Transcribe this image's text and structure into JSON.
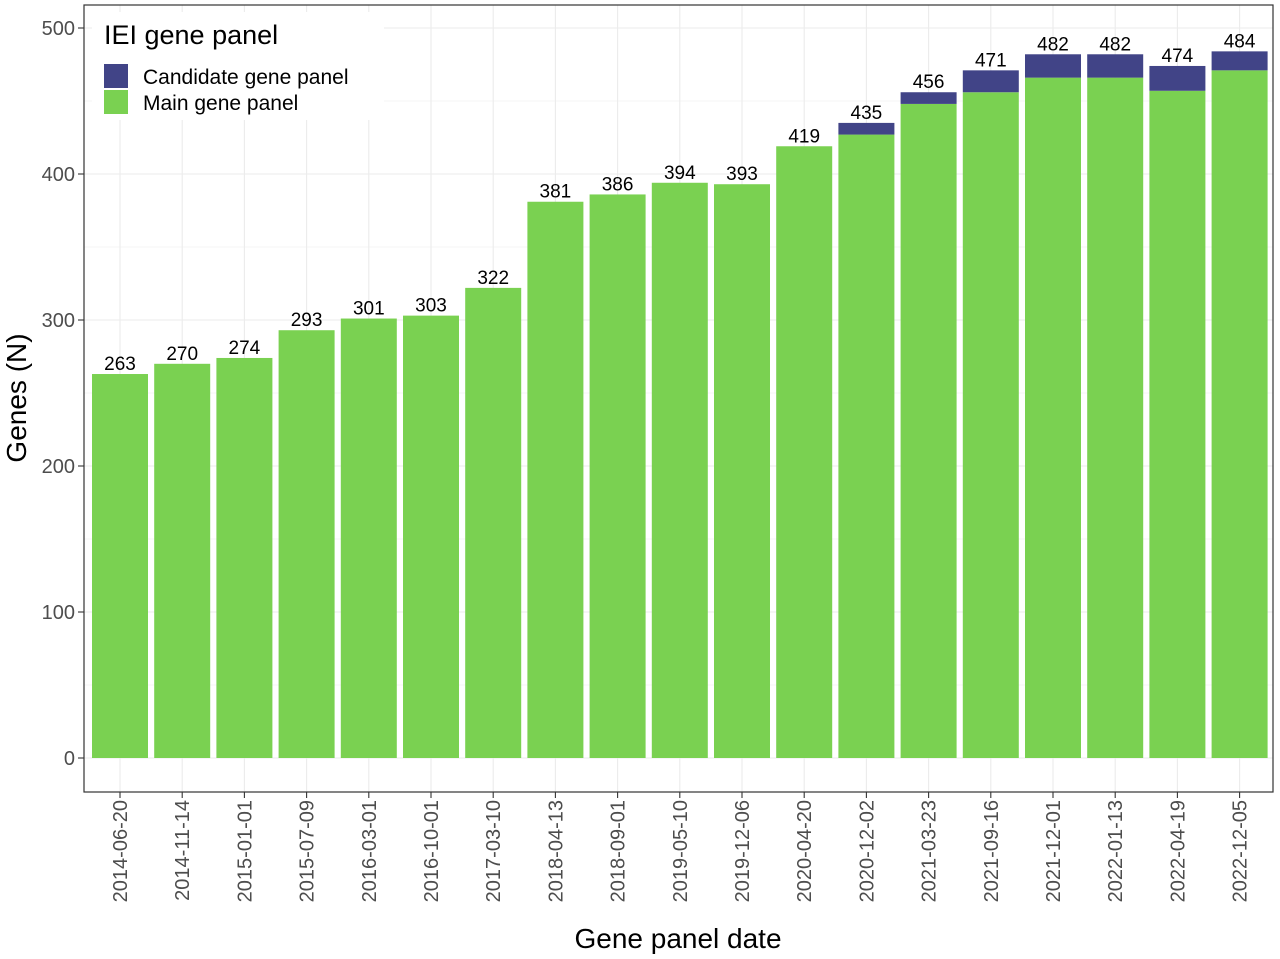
{
  "chart_data": {
    "type": "bar",
    "stacked": true,
    "categories": [
      "2014-06-20",
      "2014-11-14",
      "2015-01-01",
      "2015-07-09",
      "2016-03-01",
      "2016-10-01",
      "2017-03-10",
      "2018-04-13",
      "2018-09-01",
      "2019-05-10",
      "2019-12-06",
      "2020-04-20",
      "2020-12-02",
      "2021-03-23",
      "2021-09-16",
      "2021-12-01",
      "2022-01-13",
      "2022-04-19",
      "2022-12-05"
    ],
    "series": [
      {
        "name": "Main gene panel",
        "color": "#7ad151",
        "values": [
          263,
          270,
          274,
          293,
          301,
          303,
          322,
          381,
          386,
          394,
          393,
          419,
          427,
          448,
          456,
          466,
          466,
          457,
          471
        ]
      },
      {
        "name": "Candidate gene panel",
        "color": "#414487",
        "values": [
          0,
          0,
          0,
          0,
          0,
          0,
          0,
          0,
          0,
          0,
          0,
          0,
          8,
          8,
          15,
          16,
          16,
          17,
          13
        ]
      }
    ],
    "totals": [
      263,
      270,
      274,
      293,
      301,
      303,
      322,
      381,
      386,
      394,
      393,
      419,
      435,
      456,
      471,
      482,
      482,
      474,
      484
    ],
    "total_labels": [
      "263",
      "270",
      "274",
      "293",
      "301",
      "303",
      "322",
      "381",
      "386",
      "394",
      "393",
      "419",
      "435",
      "456",
      "471",
      "482",
      "482",
      "474",
      "484"
    ],
    "xlabel": "Gene panel date",
    "ylabel": "Genes (N)",
    "ylim": [
      0,
      500
    ],
    "yticks": [
      0,
      100,
      200,
      300,
      400,
      500
    ],
    "ytick_labels": [
      "0",
      "100",
      "200",
      "300",
      "400",
      "500"
    ],
    "grid": true,
    "legend": {
      "title": "IEI gene panel",
      "position": "top-left",
      "entries": [
        "Candidate gene panel",
        "Main gene panel"
      ]
    }
  }
}
